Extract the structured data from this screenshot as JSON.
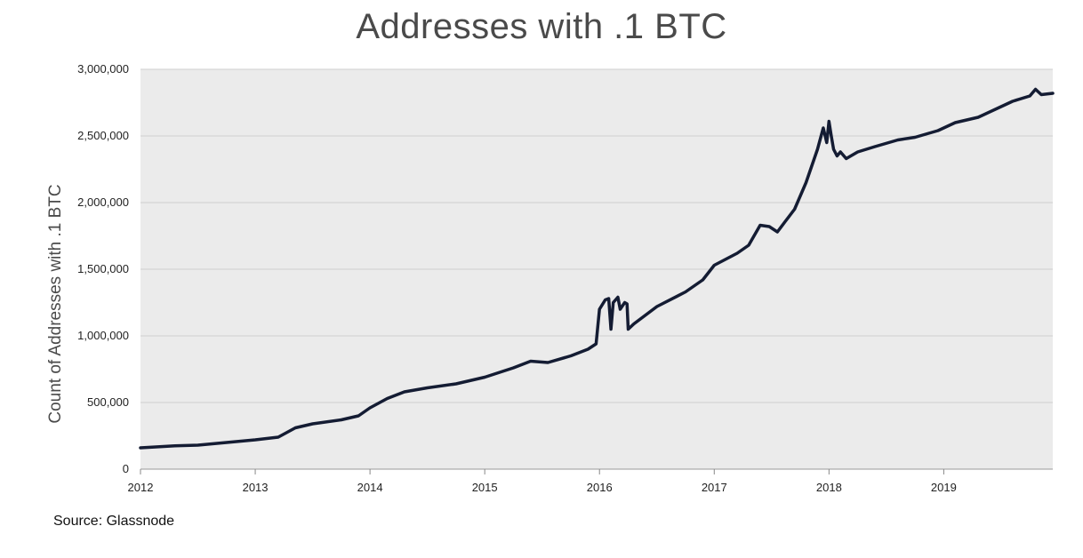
{
  "chart_data": {
    "type": "line",
    "title": "Addresses with .1 BTC",
    "ylabel": "Count of Addresses with .1 BTC",
    "xlabel": "",
    "source": "Source: Glassnode",
    "xlim": [
      2012,
      2019.95
    ],
    "ylim": [
      0,
      3000000
    ],
    "yticks": [
      0,
      500000,
      1000000,
      1500000,
      2000000,
      2500000,
      3000000
    ],
    "ytick_labels": [
      "0",
      "500,000",
      "1,000,000",
      "1,500,000",
      "2,000,000",
      "2,500,000",
      "3,000,000"
    ],
    "xticks": [
      2012,
      2013,
      2014,
      2015,
      2016,
      2017,
      2018,
      2019
    ],
    "xtick_labels": [
      "2012",
      "2013",
      "2014",
      "2015",
      "2016",
      "2017",
      "2018",
      "2019"
    ],
    "grid": true,
    "colors": {
      "line": "#141c33",
      "plot_bg": "#ebebeb",
      "grid": "#cfcfcf"
    },
    "series": [
      {
        "x": [
          2012.0,
          2012.3,
          2012.5,
          2012.75,
          2013.0,
          2013.2,
          2013.35,
          2013.5,
          2013.75,
          2013.9,
          2014.0,
          2014.15,
          2014.3,
          2014.5,
          2014.75,
          2015.0,
          2015.25,
          2015.4,
          2015.55,
          2015.75,
          2015.9,
          2015.97,
          2016.0,
          2016.05,
          2016.08,
          2016.1,
          2016.12,
          2016.16,
          2016.18,
          2016.22,
          2016.24,
          2016.25,
          2016.3,
          2016.5,
          2016.75,
          2016.9,
          2017.0,
          2017.2,
          2017.3,
          2017.4,
          2017.48,
          2017.55,
          2017.62,
          2017.7,
          2017.8,
          2017.9,
          2017.95,
          2017.98,
          2018.0,
          2018.02,
          2018.04,
          2018.07,
          2018.1,
          2018.15,
          2018.25,
          2018.4,
          2018.6,
          2018.75,
          2018.95,
          2019.1,
          2019.3,
          2019.5,
          2019.6,
          2019.75,
          2019.8,
          2019.85,
          2019.95
        ],
        "y": [
          160000,
          175000,
          180000,
          200000,
          220000,
          240000,
          310000,
          340000,
          370000,
          400000,
          460000,
          530000,
          580000,
          610000,
          640000,
          690000,
          760000,
          810000,
          800000,
          850000,
          900000,
          940000,
          1200000,
          1270000,
          1280000,
          1050000,
          1250000,
          1290000,
          1200000,
          1250000,
          1240000,
          1050000,
          1090000,
          1220000,
          1330000,
          1420000,
          1530000,
          1620000,
          1680000,
          1830000,
          1820000,
          1780000,
          1860000,
          1950000,
          2150000,
          2400000,
          2560000,
          2450000,
          2610000,
          2500000,
          2400000,
          2350000,
          2380000,
          2330000,
          2380000,
          2420000,
          2470000,
          2490000,
          2540000,
          2600000,
          2640000,
          2720000,
          2760000,
          2800000,
          2850000,
          2810000,
          2820000
        ]
      }
    ]
  }
}
